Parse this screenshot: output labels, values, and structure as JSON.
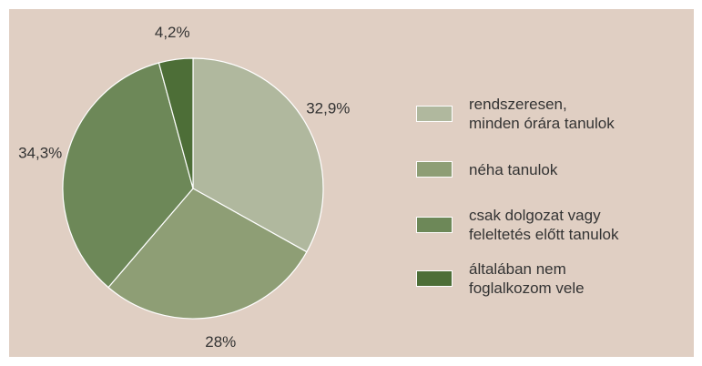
{
  "chart_data": {
    "type": "pie",
    "categories": [
      "rendszeresen,\nminden órára tanulok",
      "néha tanulok",
      "csak dolgozat vagy\nfeleltetés előtt tanulok",
      "általában nem\nfoglalkozom vele"
    ],
    "values": [
      32.9,
      28,
      34.3,
      4.2
    ],
    "value_labels": [
      "32,9%",
      "28%",
      "34,3%",
      "4,2%"
    ],
    "colors": [
      "#b0b89e",
      "#8e9e75",
      "#6d8858",
      "#4d6e37"
    ]
  }
}
